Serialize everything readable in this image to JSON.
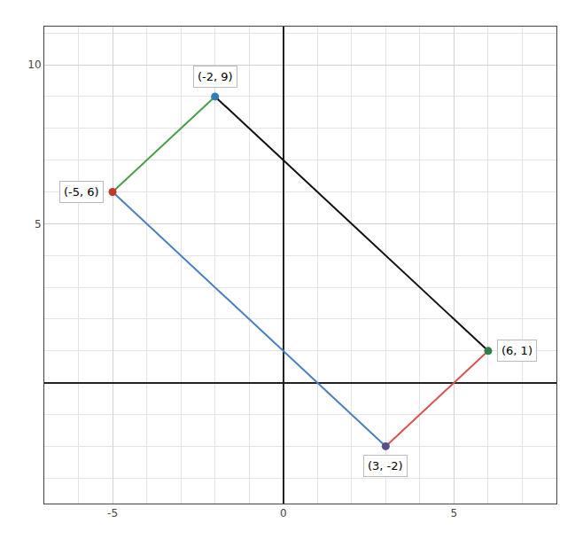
{
  "chart_data": {
    "type": "scatter",
    "series": [
      {
        "type": "line",
        "x": [
          -5,
          -2
        ],
        "values": [
          6,
          9
        ],
        "color": "#4a9e4a"
      },
      {
        "type": "line",
        "x": [
          -2,
          6
        ],
        "values": [
          9,
          1
        ],
        "color": "#111111"
      },
      {
        "type": "line",
        "x": [
          6,
          3
        ],
        "values": [
          1,
          -2
        ],
        "color": "#d9534f"
      },
      {
        "type": "line",
        "x": [
          3,
          -5
        ],
        "values": [
          -2,
          6
        ],
        "color": "#4a7fc1"
      },
      {
        "type": "scatter",
        "x": [
          -5,
          -2,
          6,
          3
        ],
        "values": [
          6,
          9,
          1,
          -2
        ],
        "colors": [
          "#c0392b",
          "#2e7fb8",
          "#2e7f4a",
          "#5b4f8a"
        ],
        "data_labels": true,
        "value_labels": [
          "(-5, 6)",
          "(-2, 9)",
          "(6, 1)",
          "(3, -2)"
        ]
      }
    ],
    "xlim": [
      -7.0,
      8.0
    ],
    "ylim": [
      -3.8,
      11.2
    ],
    "xticks": [
      -5,
      0,
      5
    ],
    "yticks": [
      5,
      10
    ],
    "grid": true
  }
}
